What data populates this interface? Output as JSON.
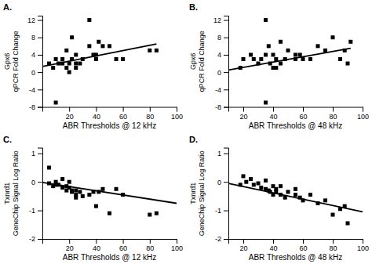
{
  "chart_data": [
    {
      "type": "scatter",
      "title": "A.",
      "xlabel": "ABR Thresholds @ 12 kHz",
      "ylabel": [
        "Gpx6",
        "qPCR Fold Change"
      ],
      "xlim": [
        0,
        100
      ],
      "ylim": [
        -8,
        13
      ],
      "xticks": [
        20,
        40,
        60,
        80,
        100
      ],
      "yticks": [
        -8,
        -4,
        0,
        4,
        8,
        12
      ],
      "series": [
        {
          "type": "scatter",
          "marker": "square",
          "color": "#000000",
          "x": [
            5,
            8,
            10,
            12,
            15,
            15,
            18,
            18,
            20,
            20,
            22,
            22,
            25,
            25,
            25,
            28,
            30,
            35,
            35,
            38,
            40,
            40,
            42,
            45,
            50,
            55,
            60,
            80,
            85
          ],
          "values": [
            2,
            1,
            3,
            2,
            3,
            2,
            5,
            1,
            2,
            0,
            3,
            8,
            4,
            2,
            1,
            2,
            3,
            12,
            6,
            4,
            4,
            3,
            7,
            6,
            6,
            3,
            3,
            5,
            5
          ]
        },
        {
          "type": "scatter",
          "marker": "square",
          "color": "#000000",
          "x": [
            10
          ],
          "values": [
            -7
          ]
        },
        {
          "type": "line",
          "line_style": "solid",
          "color": "#000000",
          "x": [
            0,
            85
          ],
          "values": [
            1.3,
            6.5
          ]
        }
      ]
    },
    {
      "type": "scatter",
      "title": "B.",
      "xlabel": "ABR Thresholds @ 48 kHz",
      "ylabel": [
        "Gpx6",
        "qPCR Fold Change"
      ],
      "xlim": [
        10,
        100
      ],
      "ylim": [
        -8,
        13
      ],
      "xticks": [
        20,
        40,
        60,
        80,
        100
      ],
      "yticks": [
        -8,
        -4,
        0,
        4,
        8,
        12
      ],
      "series": [
        {
          "type": "scatter",
          "marker": "square",
          "color": "#000000",
          "x": [
            18,
            20,
            25,
            27,
            30,
            32,
            35,
            35,
            37,
            38,
            40,
            40,
            42,
            42,
            45,
            45,
            48,
            50,
            55,
            55,
            58,
            60,
            65,
            70,
            75,
            80,
            85,
            88,
            90,
            92
          ],
          "values": [
            1,
            3,
            4,
            3,
            2,
            3,
            12,
            4,
            6,
            2,
            4,
            1,
            1,
            3,
            7,
            2,
            3,
            5,
            4,
            3,
            4,
            3,
            3,
            6,
            5,
            8,
            3,
            5,
            2,
            7
          ]
        },
        {
          "type": "scatter",
          "marker": "square",
          "color": "#000000",
          "x": [
            35
          ],
          "values": [
            -7
          ]
        },
        {
          "type": "line",
          "line_style": "solid",
          "color": "#000000",
          "x": [
            10,
            92
          ],
          "values": [
            0.5,
            5.5
          ]
        }
      ]
    },
    {
      "type": "scatter",
      "title": "C.",
      "xlabel": "ABR Thresholds @ 12 kHz",
      "ylabel": [
        "Txnrd1",
        "GeneChip Signal Log Ratio"
      ],
      "xlim": [
        0,
        100
      ],
      "ylim": [
        -2,
        1.2
      ],
      "xticks": [
        20,
        40,
        60,
        80,
        100
      ],
      "yticks": [
        -2,
        -1,
        0,
        1
      ],
      "series": [
        {
          "type": "scatter",
          "marker": "square",
          "color": "#000000",
          "x": [
            5,
            5,
            8,
            10,
            10,
            12,
            15,
            15,
            18,
            18,
            20,
            20,
            22,
            22,
            25,
            25,
            25,
            28,
            30,
            35,
            38,
            40,
            42,
            45,
            50,
            55,
            60,
            80,
            85
          ],
          "values": [
            0.5,
            -0.05,
            -0.15,
            0.0,
            -0.1,
            -0.1,
            0.1,
            -0.2,
            -0.3,
            -0.15,
            0.0,
            -0.2,
            -0.3,
            -0.35,
            -0.3,
            -0.45,
            -0.55,
            -0.35,
            -0.5,
            -0.45,
            -0.35,
            -0.85,
            -0.35,
            -0.25,
            -1.1,
            -0.25,
            -0.45,
            -1.15,
            -1.1
          ]
        },
        {
          "type": "line",
          "line_style": "solid",
          "color": "#000000",
          "x": [
            0,
            100
          ],
          "values": [
            -0.02,
            -0.75
          ]
        }
      ]
    },
    {
      "type": "scatter",
      "title": "D.",
      "xlabel": "ABR Thresholds @ 48 kHz",
      "ylabel": [
        "Txnrd1",
        "GeneChip Signal Log Ratio"
      ],
      "xlim": [
        10,
        100
      ],
      "ylim": [
        -2,
        1.2
      ],
      "xticks": [
        20,
        40,
        60,
        80,
        100
      ],
      "yticks": [
        -2,
        -1,
        0,
        1
      ],
      "series": [
        {
          "type": "scatter",
          "marker": "square",
          "color": "#000000",
          "x": [
            18,
            20,
            22,
            25,
            27,
            30,
            32,
            35,
            35,
            37,
            38,
            40,
            40,
            42,
            42,
            45,
            45,
            48,
            50,
            55,
            55,
            58,
            60,
            65,
            70,
            75,
            80,
            85,
            88,
            90
          ],
          "values": [
            -0.1,
            0.2,
            0.0,
            0.1,
            -0.1,
            -0.05,
            -0.2,
            0.05,
            -0.25,
            -0.3,
            -0.35,
            -0.45,
            -0.15,
            -0.35,
            -0.25,
            -0.45,
            -0.15,
            -0.55,
            -0.35,
            -0.45,
            -0.25,
            -0.55,
            -0.65,
            -0.45,
            -0.75,
            -0.65,
            -1.15,
            -0.95,
            -0.85,
            -1.45
          ]
        },
        {
          "type": "line",
          "line_style": "solid",
          "color": "#000000",
          "x": [
            10,
            100
          ],
          "values": [
            -0.05,
            -1.05
          ]
        }
      ]
    }
  ]
}
